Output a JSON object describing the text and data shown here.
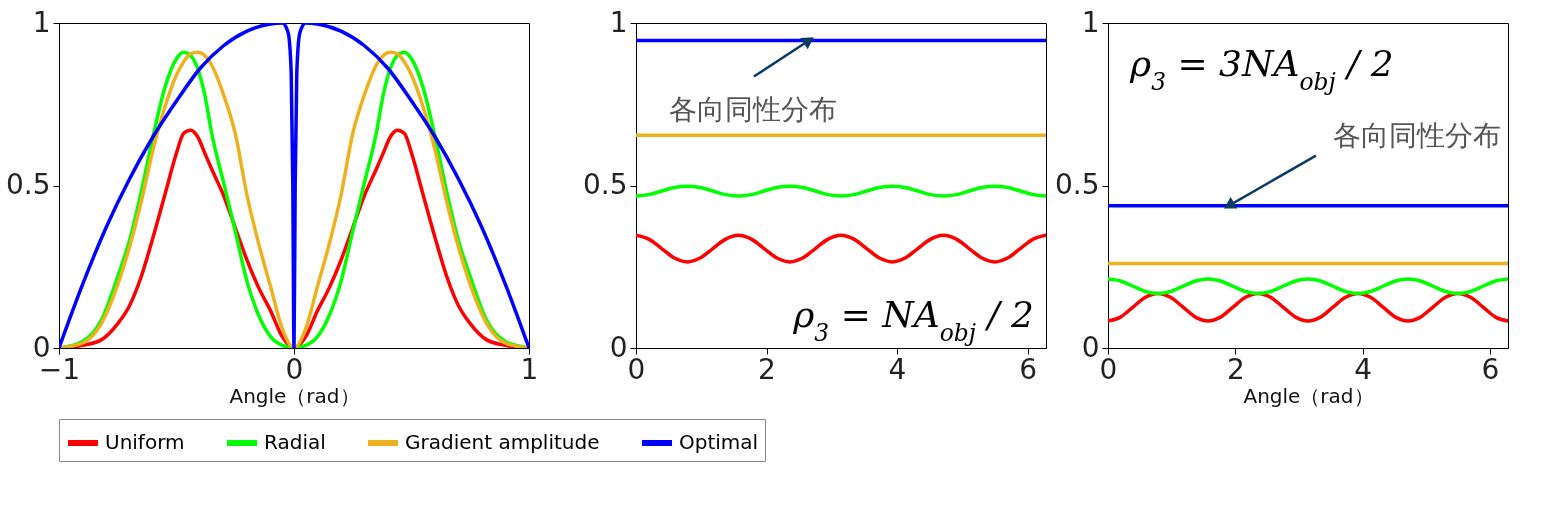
{
  "chart_data": [
    {
      "type": "line",
      "xlabel": "Angle（rad）",
      "xlim": [
        -1,
        1
      ],
      "ylim": [
        0,
        1
      ],
      "xticks": [
        -1,
        0,
        1
      ],
      "yticks": [
        0,
        0.5,
        1
      ],
      "grid": false,
      "legend": "bottom",
      "marker": "none",
      "line_style": "solid",
      "x": [
        -1,
        -0.9,
        -0.82,
        -0.75,
        -0.7,
        -0.65,
        -0.6,
        -0.55,
        -0.5,
        -0.47,
        -0.44,
        -0.41,
        -0.38,
        -0.35,
        -0.3,
        -0.25,
        -0.2,
        -0.15,
        -0.1,
        -0.05,
        0,
        0.05,
        0.1,
        0.15,
        0.2,
        0.25,
        0.3,
        0.35,
        0.38,
        0.41,
        0.44,
        0.47,
        0.5,
        0.55,
        0.6,
        0.65,
        0.7,
        0.75,
        0.82,
        0.9,
        1
      ],
      "series": [
        {
          "name": "Uniform",
          "color": "#ff0000",
          "values": [
            0,
            0.008,
            0.025,
            0.075,
            0.13,
            0.22,
            0.34,
            0.47,
            0.6,
            0.66,
            0.67,
            0.65,
            0.6,
            0.55,
            0.47,
            0.37,
            0.27,
            0.185,
            0.115,
            0.035,
            0,
            0.035,
            0.115,
            0.185,
            0.27,
            0.37,
            0.47,
            0.55,
            0.6,
            0.65,
            0.67,
            0.66,
            0.6,
            0.47,
            0.34,
            0.22,
            0.13,
            0.075,
            0.025,
            0.008,
            0
          ]
        },
        {
          "name": "Radial",
          "color": "#00ff00",
          "values": [
            0,
            0.02,
            0.085,
            0.22,
            0.33,
            0.48,
            0.65,
            0.8,
            0.89,
            0.91,
            0.9,
            0.86,
            0.78,
            0.66,
            0.51,
            0.36,
            0.205,
            0.1,
            0.035,
            0.008,
            0,
            0.008,
            0.035,
            0.1,
            0.205,
            0.36,
            0.51,
            0.66,
            0.78,
            0.86,
            0.9,
            0.91,
            0.89,
            0.8,
            0.65,
            0.48,
            0.33,
            0.22,
            0.085,
            0.02,
            0
          ]
        },
        {
          "name": "Gradient amplitude",
          "color": "#edb120",
          "values": [
            0,
            0.015,
            0.075,
            0.195,
            0.31,
            0.45,
            0.61,
            0.74,
            0.84,
            0.88,
            0.905,
            0.91,
            0.9,
            0.87,
            0.78,
            0.66,
            0.47,
            0.32,
            0.19,
            0.06,
            0,
            0.06,
            0.19,
            0.32,
            0.47,
            0.66,
            0.78,
            0.87,
            0.9,
            0.91,
            0.905,
            0.88,
            0.84,
            0.74,
            0.61,
            0.45,
            0.31,
            0.195,
            0.075,
            0.015,
            0
          ]
        },
        {
          "name": "Optimal",
          "color": "#0000ff",
          "x": [
            -1,
            -0.9,
            -0.8,
            -0.7,
            -0.6,
            -0.5,
            -0.4,
            -0.3,
            -0.2,
            -0.1,
            -0.05,
            -0.025,
            -0.012,
            -0.005,
            0,
            0.005,
            0.012,
            0.025,
            0.05,
            0.1,
            0.2,
            0.3,
            0.4,
            0.5,
            0.6,
            0.7,
            0.8,
            0.9,
            1
          ],
          "values": [
            0,
            0.195,
            0.37,
            0.52,
            0.65,
            0.76,
            0.86,
            0.93,
            0.975,
            0.997,
            1,
            0.97,
            0.85,
            0.5,
            0,
            0.5,
            0.85,
            0.97,
            1,
            0.997,
            0.975,
            0.93,
            0.86,
            0.76,
            0.65,
            0.52,
            0.37,
            0.195,
            0
          ]
        }
      ]
    },
    {
      "type": "line",
      "xlim": [
        0,
        6.283
      ],
      "ylim": [
        0,
        1
      ],
      "xticks": [
        0,
        2,
        4,
        6
      ],
      "yticks": [
        0,
        0.5,
        1
      ],
      "grid": false,
      "legend": "bottom",
      "marker": "none",
      "line_style": "solid",
      "annotations": [
        {
          "text": "各向同性分布",
          "x": 2.65,
          "y": 0.946
        },
        "ρ$_{3}$ = NA$_{obj}$ / 2"
      ],
      "x": [
        0,
        0.196,
        0.393,
        0.589,
        0.785,
        0.982,
        1.178,
        1.374,
        1.571,
        1.767,
        1.963,
        2.16,
        2.356,
        2.553,
        2.749,
        2.945,
        3.142,
        3.338,
        3.534,
        3.731,
        3.927,
        4.123,
        4.32,
        4.516,
        4.712,
        4.909,
        5.105,
        5.301,
        5.498,
        5.694,
        5.89,
        6.087,
        6.283
      ],
      "series": [
        {
          "name": "Uniform",
          "color": "#ff0000",
          "values": [
            0.347,
            0.335,
            0.306,
            0.277,
            0.265,
            0.277,
            0.306,
            0.335,
            0.347,
            0.335,
            0.306,
            0.277,
            0.265,
            0.277,
            0.306,
            0.335,
            0.347,
            0.335,
            0.306,
            0.277,
            0.265,
            0.277,
            0.306,
            0.335,
            0.347,
            0.335,
            0.306,
            0.277,
            0.265,
            0.277,
            0.306,
            0.335,
            0.347
          ]
        },
        {
          "name": "Radial",
          "color": "#00ff00",
          "values": [
            0.468,
            0.472,
            0.483,
            0.494,
            0.498,
            0.494,
            0.483,
            0.472,
            0.468,
            0.472,
            0.483,
            0.494,
            0.498,
            0.494,
            0.483,
            0.472,
            0.468,
            0.472,
            0.483,
            0.494,
            0.498,
            0.494,
            0.483,
            0.472,
            0.468,
            0.472,
            0.483,
            0.494,
            0.498,
            0.494,
            0.483,
            0.472,
            0.468
          ]
        },
        {
          "name": "Gradient amplitude",
          "color": "#edb120",
          "x": [
            0,
            6.283
          ],
          "values": [
            0.655,
            0.655
          ]
        },
        {
          "name": "Optimal",
          "color": "#0000ff",
          "x": [
            0,
            6.283
          ],
          "values": [
            0.946,
            0.946
          ]
        }
      ]
    },
    {
      "type": "line",
      "xlabel": "Angle（rad）",
      "xlim": [
        0,
        6.283
      ],
      "ylim": [
        0,
        1
      ],
      "xticks": [
        0,
        2,
        4,
        6
      ],
      "yticks": [
        0,
        0.5,
        1
      ],
      "grid": false,
      "legend": "bottom",
      "marker": "none",
      "line_style": "solid",
      "annotations": [
        "ρ$_{3}$ = 3NA$_{obj}$ / 2",
        {
          "text": "各向同性分布",
          "x": 1.9,
          "y": 0.438
        }
      ],
      "x": [
        0,
        0.196,
        0.393,
        0.589,
        0.785,
        0.982,
        1.178,
        1.374,
        1.571,
        1.767,
        1.963,
        2.16,
        2.356,
        2.553,
        2.749,
        2.945,
        3.142,
        3.338,
        3.534,
        3.731,
        3.927,
        4.123,
        4.32,
        4.516,
        4.712,
        4.909,
        5.105,
        5.301,
        5.498,
        5.694,
        5.89,
        6.087,
        6.283
      ],
      "series": [
        {
          "name": "Uniform",
          "color": "#ff0000",
          "values": [
            0.083,
            0.095,
            0.126,
            0.156,
            0.168,
            0.156,
            0.126,
            0.095,
            0.083,
            0.095,
            0.126,
            0.156,
            0.168,
            0.156,
            0.126,
            0.095,
            0.083,
            0.095,
            0.126,
            0.156,
            0.168,
            0.156,
            0.126,
            0.095,
            0.083,
            0.095,
            0.126,
            0.156,
            0.168,
            0.156,
            0.126,
            0.095,
            0.083
          ]
        },
        {
          "name": "Radial",
          "color": "#00ff00",
          "values": [
            0.212,
            0.206,
            0.19,
            0.174,
            0.168,
            0.174,
            0.19,
            0.206,
            0.212,
            0.206,
            0.19,
            0.174,
            0.168,
            0.174,
            0.19,
            0.206,
            0.212,
            0.206,
            0.19,
            0.174,
            0.168,
            0.174,
            0.19,
            0.206,
            0.212,
            0.206,
            0.19,
            0.174,
            0.168,
            0.174,
            0.19,
            0.206,
            0.212
          ]
        },
        {
          "name": "Gradient amplitude",
          "color": "#edb120",
          "x": [
            0,
            6.283
          ],
          "values": [
            0.26,
            0.26
          ]
        },
        {
          "name": "Optimal",
          "color": "#0000ff",
          "x": [
            0,
            6.283
          ],
          "values": [
            0.438,
            0.438
          ]
        }
      ]
    }
  ]
}
